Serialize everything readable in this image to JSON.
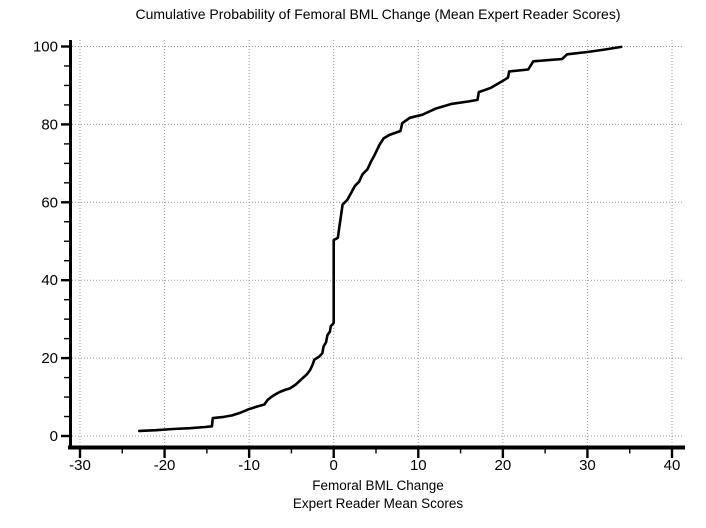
{
  "figure": {
    "title": "Cumulative Probability of Femoral BML Change (Mean Expert Reader Scores)",
    "xlabel_line1": "Femoral BML Change",
    "xlabel_line2": "Expert Reader Mean Scores"
  },
  "chart_data": {
    "type": "line",
    "title": "Cumulative Probability of Femoral BML Change (Mean Expert Reader Scores)",
    "xlabel": "Femoral BML Change",
    "xlabel_sub": "Expert Reader Mean Scores",
    "ylabel": "",
    "xlim": [
      -30,
      40
    ],
    "ylim": [
      0,
      100
    ],
    "x_ticks": [
      -30,
      -20,
      -10,
      0,
      10,
      20,
      30,
      40
    ],
    "y_ticks": [
      0,
      20,
      40,
      60,
      80,
      100
    ],
    "x_minor_step": 5,
    "y_minor_step": 5,
    "grid": "dotted gridlines at major ticks, both axes",
    "legend": "none",
    "line_color": "#000000",
    "grid_color": "#999999",
    "series": [
      {
        "name": "cumulative_probability_curve",
        "points": [
          [
            -23,
            1.3
          ],
          [
            -21,
            1.5
          ],
          [
            -19,
            1.8
          ],
          [
            -17,
            2.0
          ],
          [
            -15.2,
            2.3
          ],
          [
            -14.4,
            2.5
          ],
          [
            -14.3,
            4.6
          ],
          [
            -13,
            4.9
          ],
          [
            -12,
            5.3
          ],
          [
            -11,
            6.0
          ],
          [
            -10,
            6.9
          ],
          [
            -9,
            7.6
          ],
          [
            -8.2,
            8.1
          ],
          [
            -7.8,
            9.3
          ],
          [
            -7.2,
            10.3
          ],
          [
            -6.4,
            11.3
          ],
          [
            -5.8,
            11.8
          ],
          [
            -5.2,
            12.2
          ],
          [
            -4.5,
            13.2
          ],
          [
            -3.8,
            14.6
          ],
          [
            -3.2,
            15.8
          ],
          [
            -2.8,
            16.9
          ],
          [
            -2.5,
            18.3
          ],
          [
            -2.3,
            19.6
          ],
          [
            -1.7,
            20.4
          ],
          [
            -1.35,
            21.2
          ],
          [
            -1.2,
            23.0
          ],
          [
            -0.9,
            24.1
          ],
          [
            -0.75,
            25.9
          ],
          [
            -0.45,
            26.8
          ],
          [
            -0.35,
            28.2
          ],
          [
            -0.1,
            28.8
          ],
          [
            0,
            29.0
          ],
          [
            0,
            50.3
          ],
          [
            0.5,
            50.9
          ],
          [
            0.65,
            53.4
          ],
          [
            1.05,
            59.4
          ],
          [
            1.6,
            60.6
          ],
          [
            2.1,
            62.6
          ],
          [
            2.5,
            64.2
          ],
          [
            3.0,
            65.3
          ],
          [
            3.4,
            67.2
          ],
          [
            4.0,
            68.5
          ],
          [
            4.4,
            70.4
          ],
          [
            4.8,
            72.0
          ],
          [
            5.4,
            74.7
          ],
          [
            5.9,
            76.4
          ],
          [
            6.6,
            77.3
          ],
          [
            7.9,
            78.3
          ],
          [
            8.1,
            80.3
          ],
          [
            9.0,
            81.7
          ],
          [
            10.5,
            82.5
          ],
          [
            12.0,
            84.0
          ],
          [
            14.0,
            85.3
          ],
          [
            16.0,
            85.9
          ],
          [
            17.0,
            86.3
          ],
          [
            17.15,
            88.3
          ],
          [
            18.6,
            89.4
          ],
          [
            20.0,
            91.2
          ],
          [
            20.6,
            92.0
          ],
          [
            20.75,
            93.6
          ],
          [
            23.0,
            94.1
          ],
          [
            23.6,
            96.2
          ],
          [
            27.0,
            96.8
          ],
          [
            27.6,
            98.0
          ],
          [
            30.0,
            98.6
          ],
          [
            32.0,
            99.2
          ],
          [
            34.0,
            99.9
          ]
        ]
      }
    ]
  }
}
